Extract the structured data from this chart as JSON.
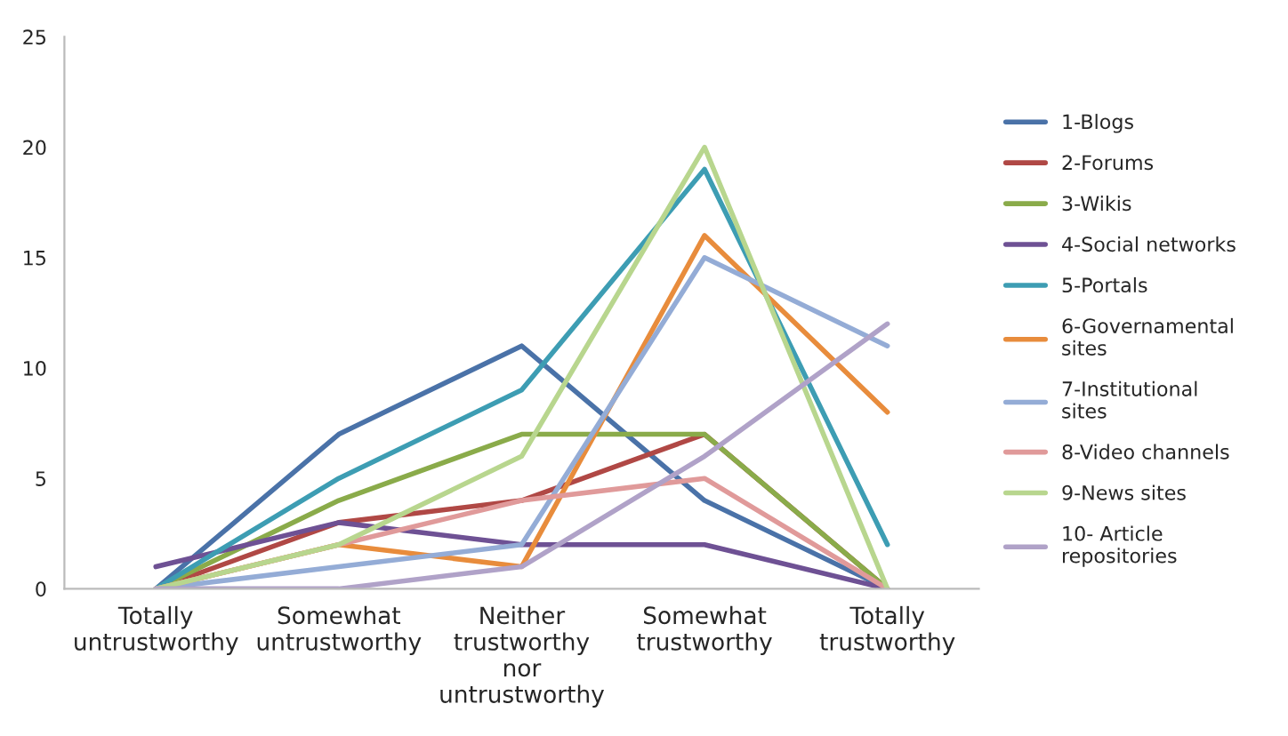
{
  "chart_data": {
    "type": "line",
    "categories": [
      "Totally\nuntrustworthy",
      "Somewhat\nuntrustworthy",
      "Neither\ntrustworthy\nnor\nuntrustworthy",
      "Somewhat\ntrustworthy",
      "Totally\ntrustworthy"
    ],
    "ylim": [
      0,
      25
    ],
    "yticks": [
      0,
      5,
      10,
      15,
      20,
      25
    ],
    "grid": false,
    "legend": "right",
    "series": [
      {
        "name": "1-Blogs",
        "color": "#4a72a8",
        "values": [
          0,
          7,
          11,
          4,
          0
        ]
      },
      {
        "name": "2-Forums",
        "color": "#b04845",
        "values": [
          0,
          3,
          4,
          7,
          0
        ]
      },
      {
        "name": "3-Wikis",
        "color": "#8aab4a",
        "values": [
          0,
          4,
          7,
          7,
          0
        ]
      },
      {
        "name": "4-Social networks",
        "color": "#6e5194",
        "values": [
          1,
          3,
          2,
          2,
          0
        ]
      },
      {
        "name": "5-Portals",
        "color": "#3d9db3",
        "values": [
          0,
          5,
          9,
          19,
          2
        ]
      },
      {
        "name": "6-Governamental\nsites",
        "color": "#e88c3c",
        "values": [
          0,
          2,
          1,
          16,
          8
        ]
      },
      {
        "name": "7-Institutional\nsites",
        "color": "#94acd6",
        "values": [
          0,
          1,
          2,
          15,
          11
        ]
      },
      {
        "name": "8-Video channels",
        "color": "#e09a9a",
        "values": [
          0,
          2,
          4,
          5,
          0
        ]
      },
      {
        "name": "9-News sites",
        "color": "#b8d68e",
        "values": [
          0,
          2,
          6,
          20,
          0
        ]
      },
      {
        "name": "10- Article\nrepositories",
        "color": "#b0a2c8",
        "values": [
          0,
          0,
          1,
          6,
          12
        ]
      }
    ]
  }
}
